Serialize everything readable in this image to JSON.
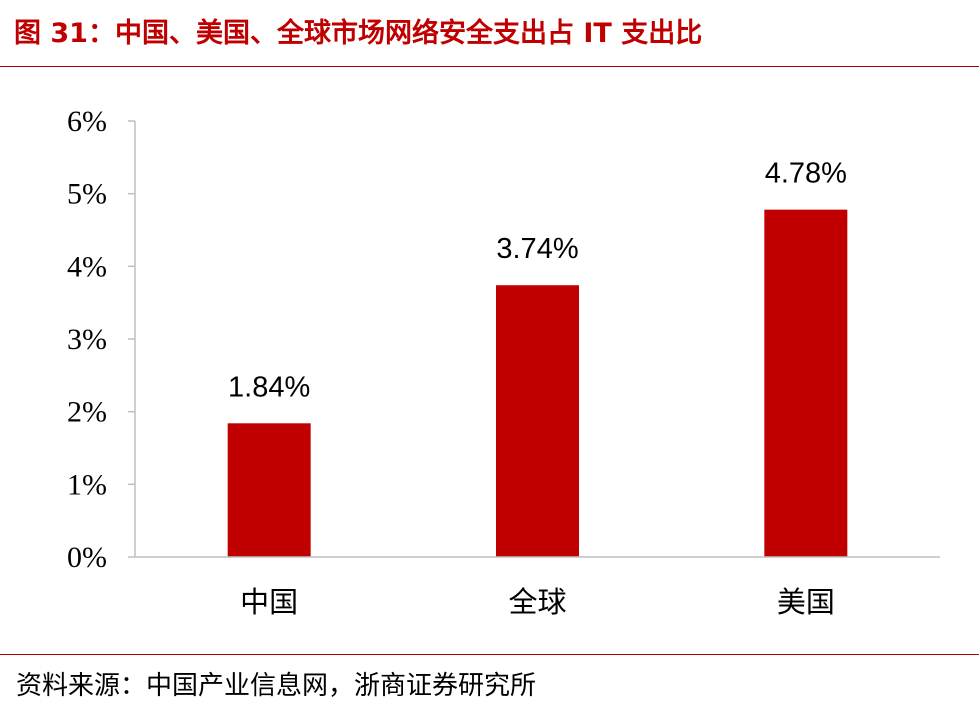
{
  "header": {
    "title": "图 31：中国、美国、全球市场网络安全支出占 IT 支出比"
  },
  "footer": {
    "source": "资料来源：中国产业信息网，浙商证券研究所"
  },
  "colors": {
    "bar": "#c00000",
    "accent": "#c00000",
    "axis": "#bfbfbf"
  },
  "chart_data": {
    "type": "bar",
    "categories": [
      "中国",
      "全球",
      "美国"
    ],
    "values": [
      1.84,
      3.74,
      4.78
    ],
    "value_labels": [
      "1.84%",
      "3.74%",
      "4.78%"
    ],
    "ylim": [
      0,
      6
    ],
    "yticks": [
      0,
      1,
      2,
      3,
      4,
      5,
      6
    ],
    "ytick_labels": [
      "0%",
      "1%",
      "2%",
      "3%",
      "4%",
      "5%",
      "6%"
    ],
    "xlabel": "",
    "ylabel": "",
    "grid": false,
    "legend": false
  }
}
